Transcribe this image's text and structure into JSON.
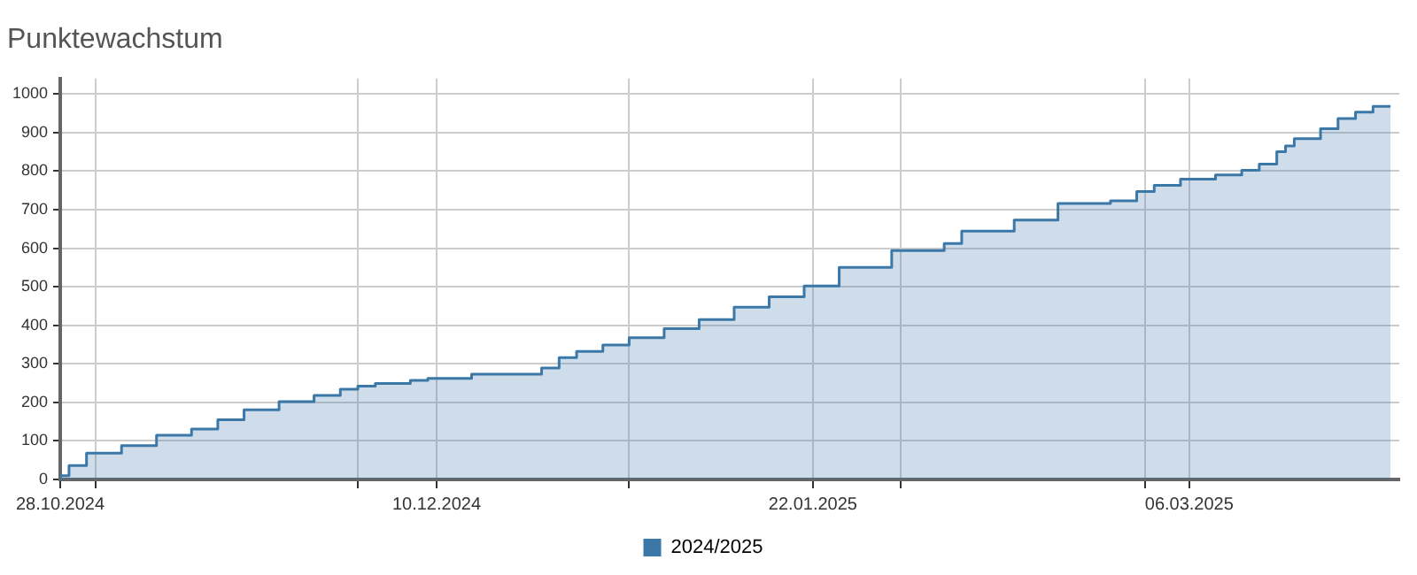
{
  "chart_data": {
    "type": "step",
    "title": "Punktewachstum",
    "x": [
      "2024-10-28",
      "2024-10-29",
      "2024-10-31",
      "2024-11-04",
      "2024-11-08",
      "2024-11-12",
      "2024-11-15",
      "2024-11-18",
      "2024-11-22",
      "2024-11-26",
      "2024-11-29",
      "2024-12-01",
      "2024-12-03",
      "2024-12-07",
      "2024-12-09",
      "2024-12-14",
      "2024-12-22",
      "2024-12-24",
      "2024-12-26",
      "2024-12-29",
      "2025-01-01",
      "2025-01-05",
      "2025-01-09",
      "2025-01-13",
      "2025-01-17",
      "2025-01-21",
      "2025-01-25",
      "2025-01-31",
      "2025-02-06",
      "2025-02-08",
      "2025-02-14",
      "2025-02-19",
      "2025-02-25",
      "2025-02-28",
      "2025-03-02",
      "2025-03-05",
      "2025-03-09",
      "2025-03-12",
      "2025-03-14",
      "2025-03-16",
      "2025-03-17",
      "2025-03-18",
      "2025-03-21",
      "2025-03-23",
      "2025-03-25",
      "2025-03-27",
      "2025-03-29"
    ],
    "series": [
      {
        "name": "2024/2025",
        "color": "#3b78a8",
        "values": [
          0,
          10,
          36,
          68,
          88,
          115,
          131,
          155,
          181,
          202,
          218,
          234,
          242,
          249,
          257,
          262,
          273,
          289,
          316,
          332,
          349,
          368,
          391,
          415,
          447,
          474,
          502,
          550,
          594,
          612,
          644,
          673,
          716,
          723,
          747,
          763,
          779,
          790,
          802,
          818,
          850,
          865,
          884,
          910,
          936,
          953,
          968
        ]
      }
    ],
    "xlim": [
      "2024-10-28",
      "2025-03-30"
    ],
    "xticks": [
      {
        "value": "2024-10-28",
        "label": "28.10.2024"
      },
      {
        "value": "2024-11-01",
        "label": null
      },
      {
        "value": "2024-12-01",
        "label": null
      },
      {
        "value": "2024-12-10",
        "label": "10.12.2024"
      },
      {
        "value": "2025-01-01",
        "label": null
      },
      {
        "value": "2025-01-22",
        "label": "22.01.2025"
      },
      {
        "value": "2025-02-01",
        "label": null
      },
      {
        "value": "2025-03-01",
        "label": null
      },
      {
        "value": "2025-03-06",
        "label": "06.03.2025"
      }
    ],
    "ylim": [
      0,
      1040
    ],
    "yticks": [
      0,
      100,
      200,
      300,
      400,
      500,
      600,
      700,
      800,
      900,
      1000
    ],
    "grid": true,
    "legend": "bottom"
  }
}
